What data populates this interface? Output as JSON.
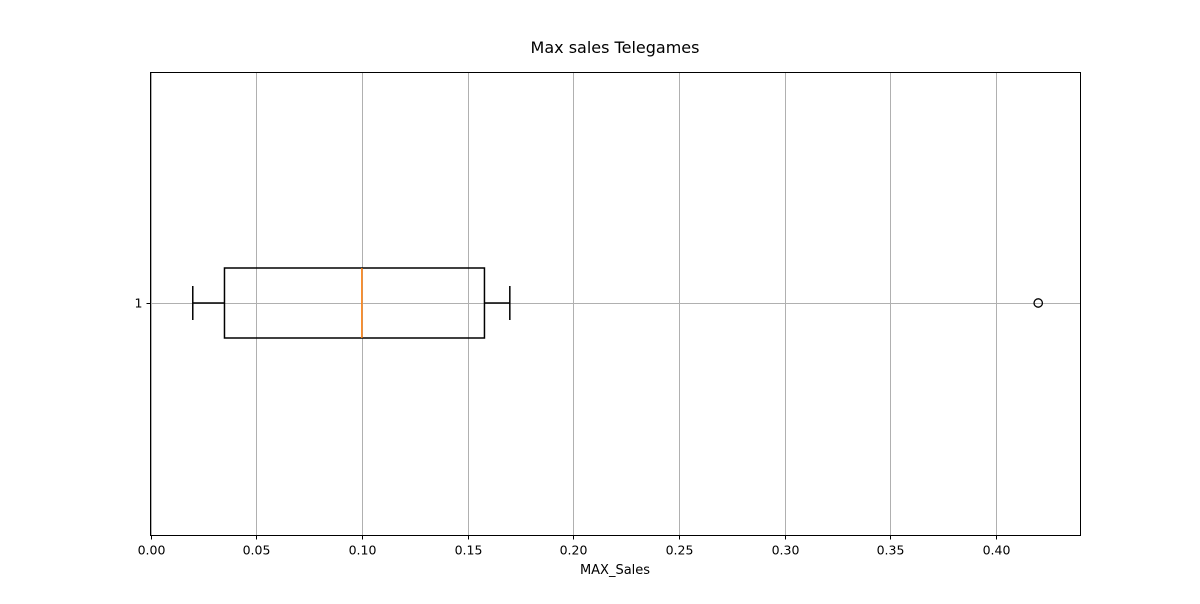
{
  "chart_data": {
    "type": "boxplot",
    "orientation": "horizontal",
    "title": "Max sales Telegames",
    "xlabel": "MAX_Sales",
    "ylabel": "",
    "xlim": [
      0.0,
      0.44
    ],
    "x_ticks": [
      0.0,
      0.05,
      0.1,
      0.15,
      0.2,
      0.25,
      0.3,
      0.35,
      0.4
    ],
    "x_tick_labels": [
      "0.00",
      "0.05",
      "0.10",
      "0.15",
      "0.20",
      "0.25",
      "0.30",
      "0.35",
      "0.40"
    ],
    "y_tick_labels": [
      "1"
    ],
    "grid": true,
    "series": [
      {
        "category": "1",
        "whisker_low": 0.02,
        "q1": 0.035,
        "median": 0.1,
        "q3": 0.158,
        "whisker_high": 0.17,
        "outliers": [
          0.42
        ]
      }
    ],
    "colors": {
      "box": "#000000",
      "median": "#ff7f0e",
      "grid": "#b0b0b0",
      "spine": "#000000"
    }
  }
}
